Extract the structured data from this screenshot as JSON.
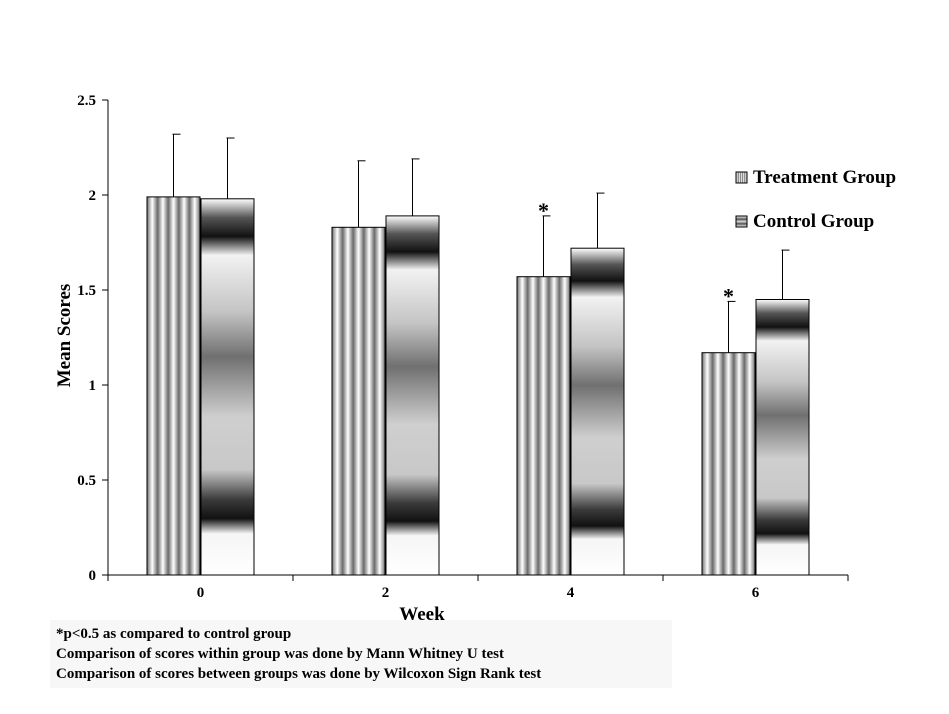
{
  "chart_data": {
    "type": "bar",
    "title": "",
    "xlabel": "Week",
    "ylabel": "Mean Scores",
    "ylim": [
      0,
      2.5
    ],
    "yticks": [
      "0",
      "0.5",
      "1",
      "1.5",
      "2",
      "2.5"
    ],
    "categories": [
      "0",
      "2",
      "4",
      "6"
    ],
    "series": [
      {
        "name": "Treatment Group",
        "values": [
          1.99,
          1.83,
          1.57,
          1.17
        ],
        "errors": [
          0.33,
          0.35,
          0.32,
          0.27
        ]
      },
      {
        "name": "Control Group",
        "values": [
          1.98,
          1.89,
          1.72,
          1.45
        ],
        "errors": [
          0.32,
          0.3,
          0.29,
          0.26
        ]
      }
    ],
    "annotations": [
      {
        "category": "4",
        "series": "Treatment Group",
        "text": "*"
      },
      {
        "category": "6",
        "series": "Treatment Group",
        "text": "*"
      }
    ],
    "legend_position": "right",
    "grid": false
  },
  "notes": [
    "*p<0.5 as compared to control group",
    "Comparison of scores within group was done by Mann Whitney U test",
    "Comparison of scores between groups was done by Wilcoxon Sign Rank test"
  ]
}
